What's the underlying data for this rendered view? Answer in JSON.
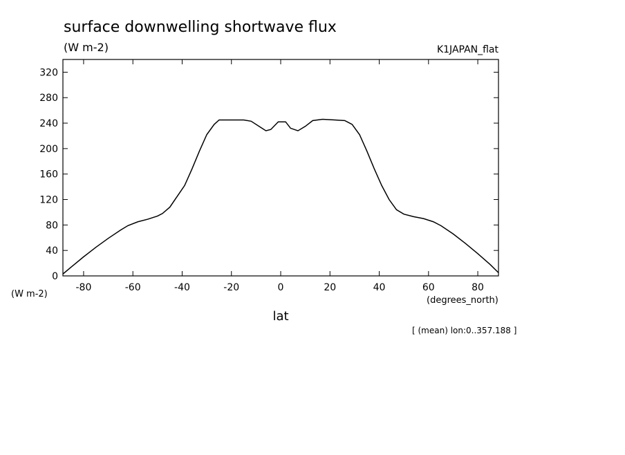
{
  "chart_data": {
    "type": "line",
    "title": "surface downwelling shortwave flux",
    "y_unit": "(W m-2)",
    "dataset": "K1JAPAN_flat",
    "y_axis_unit": "(W m-2)",
    "x_unit": "(degrees_north)",
    "x_label": "lat",
    "note": "[ (mean) lon:0..357.188 ]",
    "x": [
      -88.4,
      -85,
      -80,
      -75,
      -70,
      -65,
      -62,
      -58,
      -54,
      -50,
      -48,
      -45,
      -42,
      -39,
      -36,
      -33,
      -30,
      -27,
      -25,
      -20,
      -15,
      -12,
      -8,
      -6,
      -4,
      -1,
      2,
      4,
      7,
      10,
      13,
      17,
      22,
      26,
      29,
      32,
      35,
      38,
      41,
      44,
      47,
      50,
      54,
      58,
      62,
      65,
      70,
      75,
      80,
      85,
      88.4
    ],
    "series": [
      {
        "color": "#000000",
        "values": [
          3,
          14,
          30,
          45,
          59,
          72,
          79,
          85,
          89,
          94,
          98,
          108,
          125,
          142,
          168,
          196,
          222,
          238,
          245,
          245,
          245,
          243,
          233,
          228,
          230,
          242,
          242,
          232,
          228,
          235,
          244,
          246,
          245,
          244,
          238,
          222,
          196,
          168,
          142,
          120,
          104,
          97,
          93,
          90,
          85,
          79,
          66,
          51,
          35,
          18,
          5
        ]
      }
    ],
    "xlim": [
      -88.4,
      88.4
    ],
    "xticks": [
      -80,
      -60,
      -40,
      -20,
      0,
      20,
      40,
      60,
      80
    ],
    "ylim": [
      0,
      340
    ],
    "yticks": [
      0,
      40,
      80,
      120,
      160,
      200,
      240,
      280,
      320
    ],
    "grid": false
  }
}
